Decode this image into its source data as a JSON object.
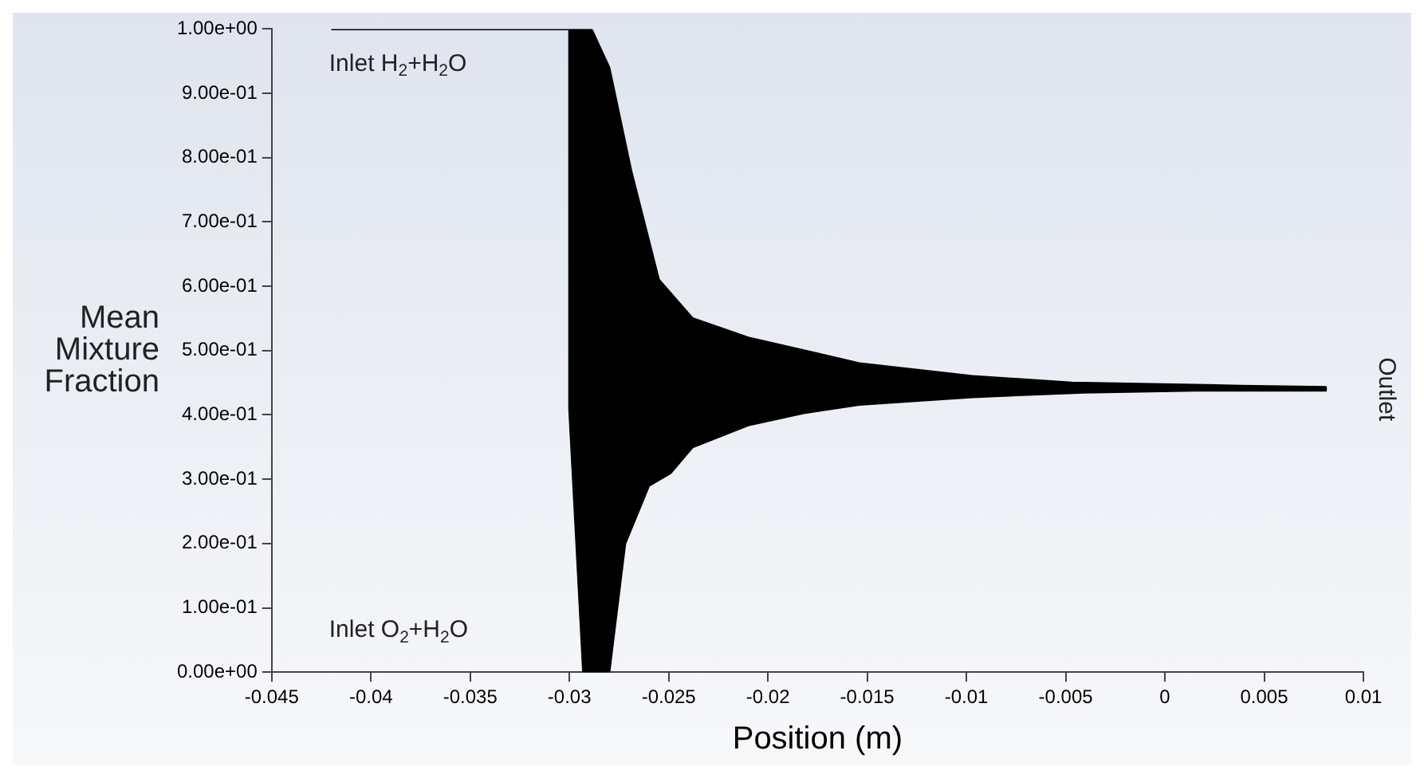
{
  "chart_data": {
    "type": "area",
    "xlabel": "Position (m)",
    "ylabel": "Mean Mixture Fraction",
    "xlim": [
      -0.045,
      0.01
    ],
    "xticks": [
      -0.045,
      -0.04,
      -0.035,
      -0.03,
      -0.025,
      -0.02,
      -0.015,
      -0.01,
      -0.005,
      0,
      0.005,
      0.01
    ],
    "ylim": [
      0,
      1
    ],
    "yticks": [
      {
        "value": 0,
        "label": "0.00e+00"
      },
      {
        "value": 0.1,
        "label": "1.00e-01"
      },
      {
        "value": 0.2,
        "label": "2.00e-01"
      },
      {
        "value": 0.3,
        "label": "3.00e-01"
      },
      {
        "value": 0.4,
        "label": "4.00e-01"
      },
      {
        "value": 0.5,
        "label": "5.00e-01"
      },
      {
        "value": 0.6,
        "label": "6.00e-01"
      },
      {
        "value": 0.7,
        "label": "7.00e-01"
      },
      {
        "value": 0.8,
        "label": "8.00e-01"
      },
      {
        "value": 0.9,
        "label": "9.00e-01"
      },
      {
        "value": 1,
        "label": "1.00e+00"
      }
    ],
    "grid": false,
    "legend": false,
    "series": [
      {
        "color": "#000000",
        "x": [
          -0.042,
          -0.03,
          -0.0289,
          -0.028,
          -0.0269,
          -0.0255,
          -0.0238,
          -0.021,
          -0.0182,
          -0.0154,
          -0.0097,
          -0.0047,
          0.0038,
          0.0081,
          0.0081,
          0.0015,
          -0.0041,
          -0.0097,
          -0.0154,
          -0.0182,
          -0.021,
          -0.0238,
          -0.0249,
          -0.026,
          -0.0272,
          -0.028,
          -0.0293,
          -0.03,
          -0.03
        ],
        "values": [
          1,
          1,
          1,
          0.94,
          0.78,
          0.61,
          0.55,
          0.52,
          0.5,
          0.48,
          0.46,
          0.45,
          0.445,
          0.443,
          0.438,
          0.438,
          0.435,
          0.428,
          0.416,
          0.403,
          0.384,
          0.35,
          0.31,
          0.29,
          0.2,
          0,
          0,
          0.41,
          1
        ]
      }
    ],
    "annotations": [
      "Inlet H$_{2}$+H$_{2}$O",
      "Inlet O$_{2}$+H$_{2}$O",
      "Outlet"
    ]
  }
}
